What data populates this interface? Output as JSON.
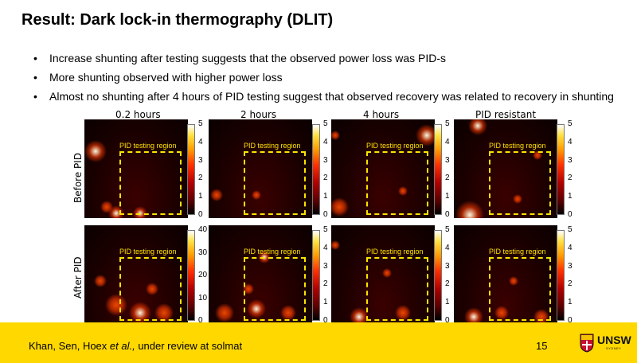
{
  "title": "Result: Dark lock-in thermography (DLIT)",
  "bullets": [
    "Increase shunting after testing suggests that the observed power loss was PID-s",
    "More shunting observed with higher power loss",
    "Almost no shunting after 4 hours of PID testing suggest that observed recovery was related to recovery in shunting"
  ],
  "columns": [
    "0.2 hours",
    "2 hours",
    "4 hours",
    "PID  resistant"
  ],
  "rows": [
    "Before PID",
    "After PID"
  ],
  "region_label": "PID testing region",
  "colorbars": {
    "before": [
      [
        "5",
        "4",
        "3",
        "2",
        "1",
        "0"
      ],
      [
        "5",
        "4",
        "3",
        "2",
        "1",
        "0"
      ],
      [
        "5",
        "4",
        "3",
        "2",
        "1",
        "0"
      ],
      [
        "5",
        "4",
        "3",
        "2",
        "1",
        "0"
      ]
    ],
    "after": [
      [
        "40",
        "30",
        "20",
        "10",
        "0"
      ],
      [
        "5",
        "4",
        "3",
        "2",
        "1",
        "0"
      ],
      [
        "5",
        "4",
        "3",
        "2",
        "1",
        "0"
      ],
      [
        "5",
        "4",
        "3",
        "2",
        "1",
        "0"
      ]
    ]
  },
  "footer": {
    "citation_prefix": "Khan, Sen, Hoex ",
    "citation_em": "et al.,",
    "citation_suffix": " under review at solmat",
    "page": "15",
    "logo_text": "UNSW",
    "logo_sub": "SYDNEY"
  },
  "colors": {
    "footer_bg": "#ffd800",
    "region_outline": "#ffe300"
  }
}
